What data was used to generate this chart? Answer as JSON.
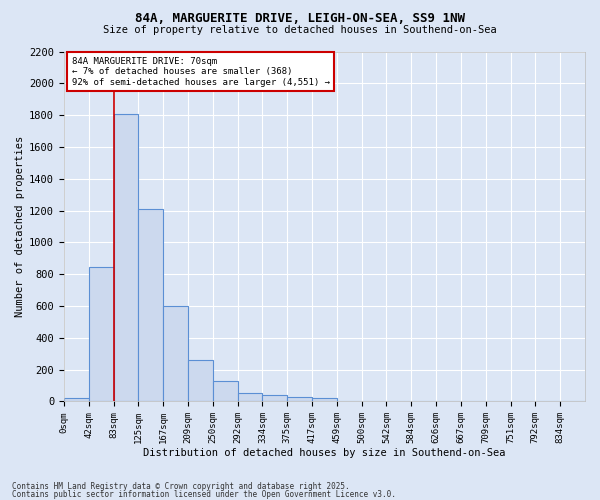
{
  "title1": "84A, MARGUERITE DRIVE, LEIGH-ON-SEA, SS9 1NW",
  "title2": "Size of property relative to detached houses in Southend-on-Sea",
  "xlabel": "Distribution of detached houses by size in Southend-on-Sea",
  "ylabel": "Number of detached properties",
  "bin_labels": [
    "0sqm",
    "42sqm",
    "83sqm",
    "125sqm",
    "167sqm",
    "209sqm",
    "250sqm",
    "292sqm",
    "334sqm",
    "375sqm",
    "417sqm",
    "459sqm",
    "500sqm",
    "542sqm",
    "584sqm",
    "626sqm",
    "667sqm",
    "709sqm",
    "751sqm",
    "792sqm",
    "834sqm"
  ],
  "bar_heights": [
    20,
    845,
    1810,
    1210,
    600,
    260,
    130,
    50,
    40,
    30,
    20,
    0,
    0,
    0,
    0,
    0,
    0,
    0,
    0,
    0,
    0
  ],
  "bar_color": "#ccd9ee",
  "bar_edge_color": "#5b8fd4",
  "background_color": "#dce6f5",
  "grid_color": "#ffffff",
  "annotation_box_color": "#cc0000",
  "annotation_text": "84A MARGUERITE DRIVE: 70sqm\n← 7% of detached houses are smaller (368)\n92% of semi-detached houses are larger (4,551) →",
  "vline_bin_index": 1,
  "bin_width": 1,
  "ylim": [
    0,
    2200
  ],
  "yticks": [
    0,
    200,
    400,
    600,
    800,
    1000,
    1200,
    1400,
    1600,
    1800,
    2000,
    2200
  ],
  "footer1": "Contains HM Land Registry data © Crown copyright and database right 2025.",
  "footer2": "Contains public sector information licensed under the Open Government Licence v3.0."
}
